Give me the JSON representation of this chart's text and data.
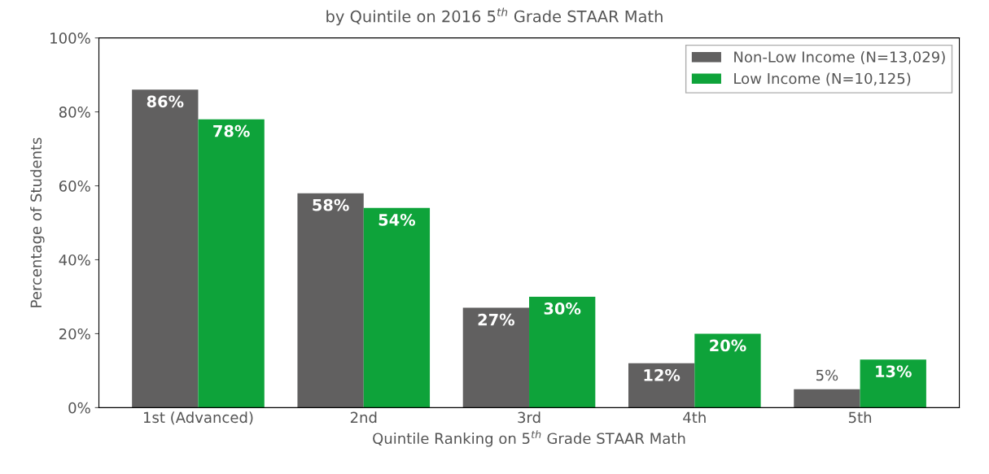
{
  "chart_data": {
    "type": "bar",
    "title": "by Quintile on 2016 5$^{th}$ Grade STAAR Math",
    "xlabel": "Quintile Ranking on 5$^{th}$ Grade STAAR Math",
    "ylabel": "Percentage of Students",
    "categories": [
      "1st (Advanced)",
      "2nd",
      "3rd",
      "4th",
      "5th"
    ],
    "series": [
      {
        "name": "Non-Low Income (N=13,029)",
        "color": "#616060",
        "values": [
          86,
          58,
          27,
          12,
          5
        ],
        "value_labels": [
          "86%",
          "58%",
          "27%",
          "12%",
          "5%"
        ]
      },
      {
        "name": "Low Income (N=10,125)",
        "color": "#0ea33a",
        "values": [
          78,
          54,
          30,
          20,
          13
        ],
        "value_labels": [
          "78%",
          "54%",
          "30%",
          "20%",
          "13%"
        ]
      }
    ],
    "ylim": [
      0,
      100
    ],
    "yticks": [
      {
        "value": 0,
        "label": "0%"
      },
      {
        "value": 20,
        "label": "20%"
      },
      {
        "value": 40,
        "label": "40%"
      },
      {
        "value": 60,
        "label": "60%"
      },
      {
        "value": 80,
        "label": "80%"
      },
      {
        "value": 100,
        "label": "100%"
      }
    ],
    "grid": false,
    "legend": "top right"
  }
}
